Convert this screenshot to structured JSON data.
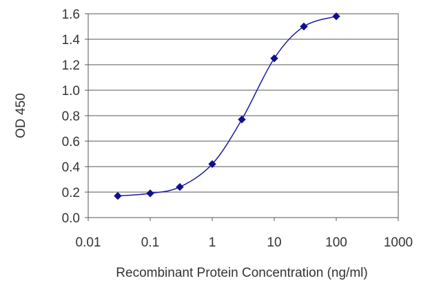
{
  "chart_data": {
    "type": "line",
    "title": "",
    "xlabel": "Recombinant Protein Concentration (ng/ml)",
    "ylabel": "OD 450",
    "x_scale": "log",
    "xlim": [
      0.01,
      1000
    ],
    "ylim": [
      0,
      1.6
    ],
    "x_ticks": [
      "0.01",
      "0.1",
      "1",
      "10",
      "100",
      "1000"
    ],
    "y_ticks": [
      "0.0",
      "0.2",
      "0.4",
      "0.6",
      "0.8",
      "1.0",
      "1.2",
      "1.4",
      "1.6"
    ],
    "grid": "horizontal",
    "legend": "none",
    "series": [
      {
        "color": "#1a1aa6",
        "marker": "diamond",
        "x": [
          0.03,
          0.1,
          0.3,
          1,
          3,
          10,
          30,
          100
        ],
        "y": [
          0.17,
          0.19,
          0.24,
          0.42,
          0.77,
          1.25,
          1.5,
          1.58
        ]
      }
    ]
  }
}
